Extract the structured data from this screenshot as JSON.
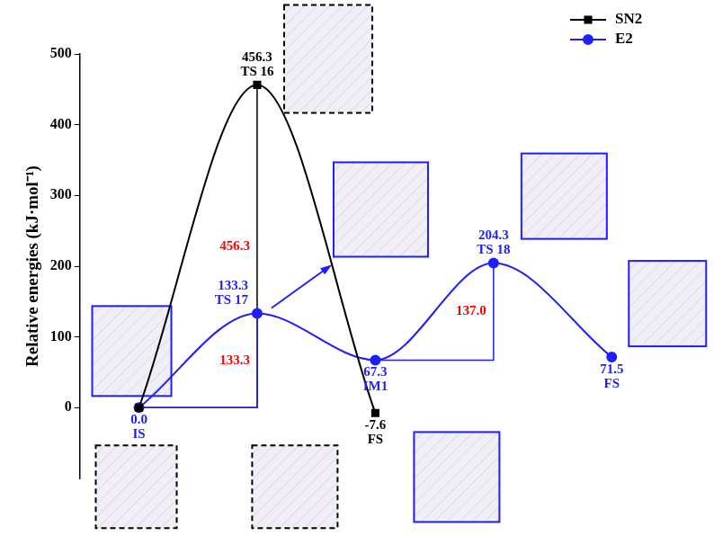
{
  "chart_data": {
    "type": "line",
    "ylabel": "Relative energies (kJ·mol⁻¹)",
    "categories": [
      null,
      null,
      null,
      null,
      null
    ],
    "ylim": [
      -100,
      500
    ],
    "yticks": [
      0,
      100,
      200,
      300,
      400,
      500
    ],
    "grid": false,
    "legend": "upper right",
    "tick_labels": "y",
    "series": [
      {
        "name": "SN2",
        "color": "#000000",
        "marker": "square",
        "values": [
          0,
          456.3,
          -7.6,
          null,
          null
        ],
        "value_labels": [
          null,
          "456.3",
          "-7.6",
          null,
          null
        ],
        "point_labels": [
          null,
          "TS 16",
          "FS",
          null,
          null
        ],
        "barriers": [
          {
            "from": 0,
            "to": 1,
            "value": 456.3,
            "label": "456.3"
          }
        ]
      },
      {
        "name": "E2",
        "color": "#1e1eff",
        "marker": "circle",
        "values": [
          0,
          133.3,
          67.3,
          204.3,
          71.5
        ],
        "value_labels": [
          "0.0",
          "133.3",
          "67.3",
          "204.3",
          "71.5"
        ],
        "point_labels": [
          "IS",
          "TS 17",
          "IM1",
          "TS 18",
          "FS"
        ],
        "barriers": [
          {
            "from": 0,
            "to": 1,
            "value": 133.3,
            "label": "133.3"
          },
          {
            "from": 2,
            "to": 3,
            "value": 137.0,
            "label": "137.0"
          }
        ]
      }
    ]
  }
}
